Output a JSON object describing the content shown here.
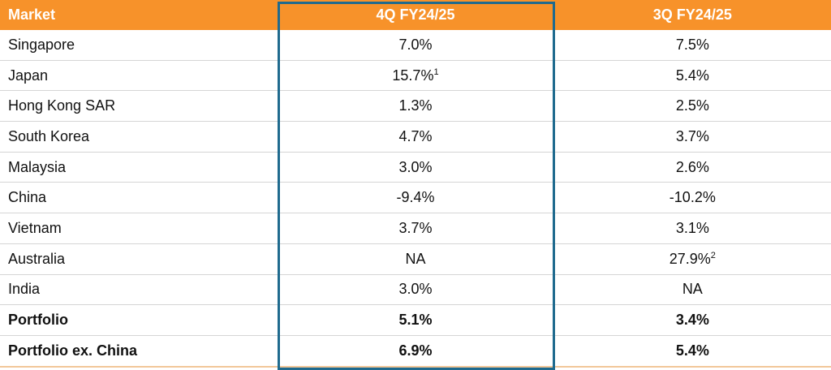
{
  "table": {
    "header": [
      "Market",
      "4Q FY24/25",
      "3Q FY24/25"
    ],
    "rows": [
      [
        "Singapore",
        "7.0%",
        "7.5%"
      ],
      [
        "Japan",
        {
          "text": "15.7%",
          "sup": "1"
        },
        "5.4%"
      ],
      [
        "Hong Kong SAR",
        "1.3%",
        "2.5%"
      ],
      [
        "South Korea",
        "4.7%",
        "3.7%"
      ],
      [
        "Malaysia",
        "3.0%",
        "2.6%"
      ],
      [
        "China",
        "-9.4%",
        "-10.2%"
      ],
      [
        "Vietnam",
        "3.7%",
        "3.1%"
      ],
      [
        "Australia",
        "NA",
        {
          "text": "27.9%",
          "sup": "2"
        }
      ],
      [
        "India",
        "3.0%",
        "NA"
      ],
      [
        "Portfolio",
        "5.1%",
        "3.4%"
      ],
      [
        "Portfolio ex. China",
        "6.9%",
        "5.4%"
      ]
    ],
    "bold_rows": [
      9,
      10
    ]
  }
}
